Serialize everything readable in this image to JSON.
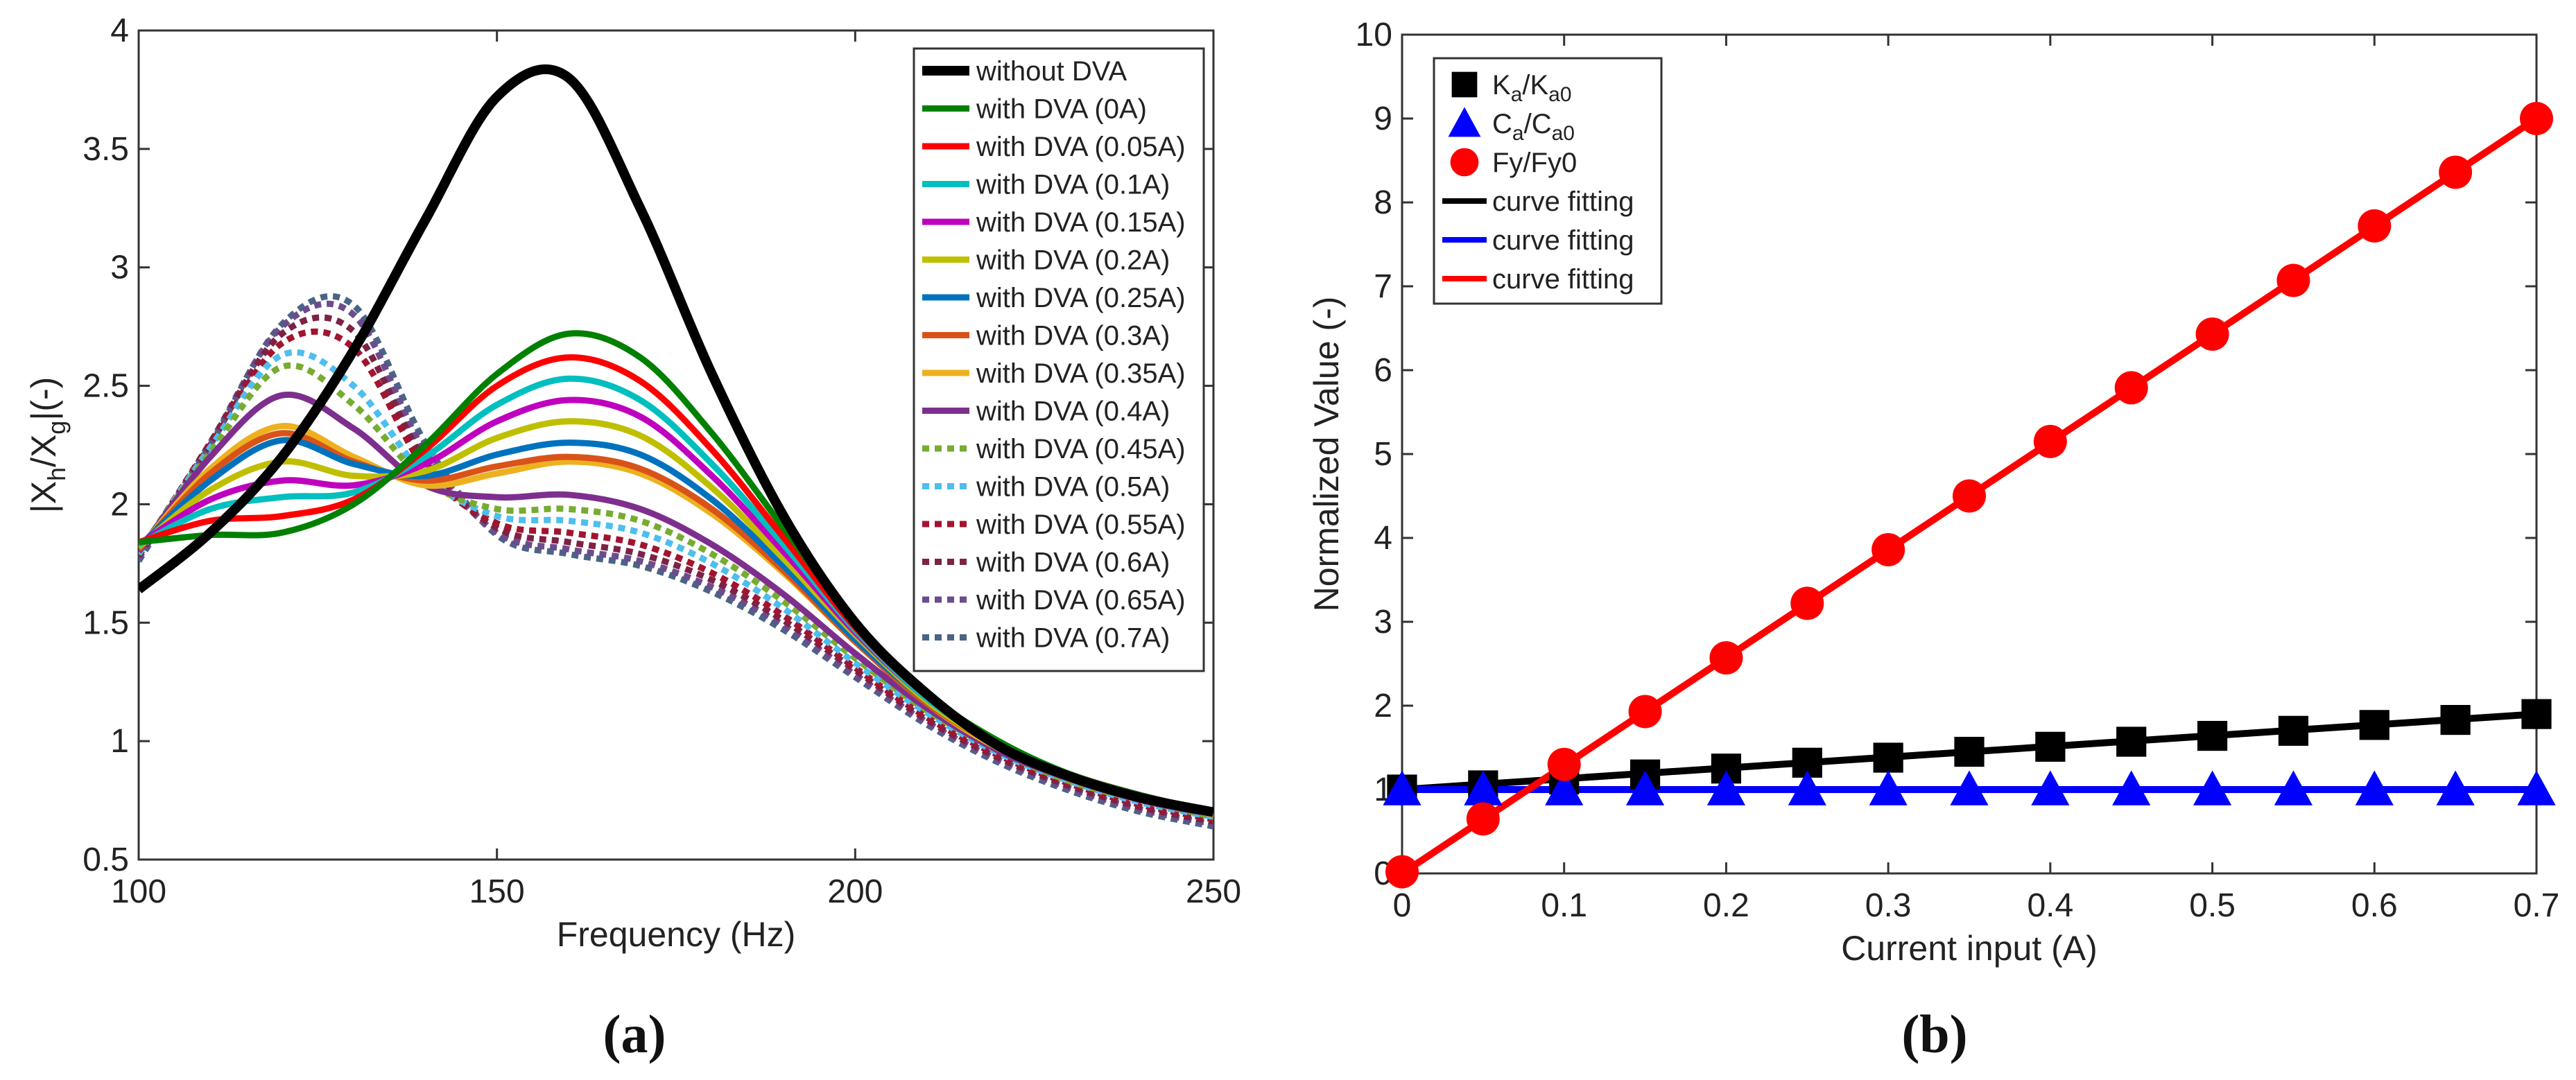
{
  "chart_data": [
    {
      "type": "line",
      "panel": "a",
      "caption": "(a)",
      "xlabel": "Frequency (Hz)",
      "ylabel_parts": [
        "|X",
        "h",
        "/X",
        "g",
        "|(-)"
      ],
      "xlim": [
        100,
        250
      ],
      "ylim": [
        0.5,
        4
      ],
      "xticks": [
        100,
        150,
        200,
        250
      ],
      "yticks": [
        0.5,
        1,
        1.5,
        2,
        2.5,
        3,
        3.5,
        4
      ],
      "x": [
        100,
        110,
        120,
        130,
        140,
        150,
        160,
        170,
        180,
        190,
        200,
        210,
        220,
        230,
        240,
        250
      ],
      "legend_position": "top-right",
      "series": [
        {
          "name": "without DVA",
          "color": "#000000",
          "style": "solid",
          "width": 14,
          "values": [
            1.64,
            1.88,
            2.2,
            2.65,
            3.2,
            3.72,
            3.8,
            3.25,
            2.55,
            1.95,
            1.5,
            1.2,
            0.98,
            0.85,
            0.76,
            0.7
          ]
        },
        {
          "name": "with DVA (0A)",
          "color": "#008000",
          "style": "solid",
          "width": 9,
          "values": [
            1.84,
            1.87,
            1.88,
            2.0,
            2.25,
            2.55,
            2.72,
            2.62,
            2.3,
            1.9,
            1.5,
            1.2,
            1.0,
            0.86,
            0.77,
            0.7
          ]
        },
        {
          "name": "with DVA (0.05A)",
          "color": "#ff0000",
          "style": "solid",
          "width": 9,
          "values": [
            1.84,
            1.93,
            1.95,
            2.02,
            2.23,
            2.5,
            2.62,
            2.52,
            2.23,
            1.86,
            1.48,
            1.19,
            0.99,
            0.86,
            0.77,
            0.7
          ]
        },
        {
          "name": "with DVA (0.1A)",
          "color": "#00bfbf",
          "style": "solid",
          "width": 9,
          "values": [
            1.83,
            1.98,
            2.03,
            2.05,
            2.2,
            2.42,
            2.53,
            2.44,
            2.17,
            1.83,
            1.47,
            1.18,
            0.99,
            0.86,
            0.77,
            0.7
          ]
        },
        {
          "name": "with DVA (0.15A)",
          "color": "#bf00bf",
          "style": "solid",
          "width": 9,
          "values": [
            1.83,
            2.02,
            2.1,
            2.08,
            2.17,
            2.35,
            2.44,
            2.37,
            2.12,
            1.8,
            1.46,
            1.18,
            0.99,
            0.86,
            0.77,
            0.7
          ]
        },
        {
          "name": "with DVA (0.2A)",
          "color": "#bfbf00",
          "style": "solid",
          "width": 9,
          "values": [
            1.82,
            2.06,
            2.18,
            2.12,
            2.14,
            2.28,
            2.35,
            2.29,
            2.07,
            1.77,
            1.45,
            1.17,
            0.98,
            0.85,
            0.76,
            0.7
          ]
        },
        {
          "name": "with DVA (0.25A)",
          "color": "#0072bd",
          "style": "solid",
          "width": 9,
          "values": [
            1.82,
            2.1,
            2.27,
            2.17,
            2.12,
            2.21,
            2.26,
            2.21,
            2.02,
            1.74,
            1.43,
            1.17,
            0.98,
            0.85,
            0.76,
            0.7
          ]
        },
        {
          "name": "with DVA (0.3A)",
          "color": "#d95319",
          "style": "solid",
          "width": 9,
          "values": [
            1.81,
            2.13,
            2.3,
            2.18,
            2.1,
            2.16,
            2.2,
            2.15,
            1.98,
            1.72,
            1.42,
            1.16,
            0.98,
            0.85,
            0.76,
            0.7
          ]
        },
        {
          "name": "with DVA (0.35A)",
          "color": "#edb120",
          "style": "solid",
          "width": 9,
          "values": [
            1.81,
            2.15,
            2.33,
            2.2,
            2.08,
            2.13,
            2.18,
            2.13,
            1.96,
            1.71,
            1.42,
            1.16,
            0.97,
            0.85,
            0.76,
            0.69
          ]
        },
        {
          "name": "with DVA (0.4A)",
          "color": "#7e2f8e",
          "style": "solid",
          "width": 9,
          "values": [
            1.8,
            2.2,
            2.46,
            2.32,
            2.08,
            2.03,
            2.04,
            1.98,
            1.83,
            1.62,
            1.37,
            1.14,
            0.96,
            0.84,
            0.75,
            0.69
          ]
        },
        {
          "name": "with DVA (0.45A)",
          "color": "#77ac30",
          "style": "dotted",
          "width": 9,
          "values": [
            1.8,
            2.22,
            2.58,
            2.42,
            2.1,
            1.98,
            1.98,
            1.93,
            1.79,
            1.59,
            1.35,
            1.13,
            0.96,
            0.83,
            0.75,
            0.68
          ]
        },
        {
          "name": "with DVA (0.5A)",
          "color": "#4dbeee",
          "style": "dotted",
          "width": 9,
          "values": [
            1.79,
            2.24,
            2.63,
            2.5,
            2.12,
            1.95,
            1.93,
            1.88,
            1.75,
            1.56,
            1.33,
            1.12,
            0.95,
            0.83,
            0.74,
            0.68
          ]
        },
        {
          "name": "with DVA (0.55A)",
          "color": "#a2142f",
          "style": "dotted",
          "width": 9,
          "values": [
            1.79,
            2.25,
            2.68,
            2.66,
            2.15,
            1.92,
            1.88,
            1.83,
            1.71,
            1.53,
            1.31,
            1.1,
            0.94,
            0.82,
            0.73,
            0.67
          ]
        },
        {
          "name": "with DVA (0.6A)",
          "color": "#7d2245",
          "style": "dotted",
          "width": 9,
          "values": [
            1.78,
            2.26,
            2.72,
            2.73,
            2.18,
            1.9,
            1.84,
            1.79,
            1.68,
            1.51,
            1.3,
            1.09,
            0.93,
            0.81,
            0.72,
            0.66
          ]
        },
        {
          "name": "with DVA (0.65A)",
          "color": "#6b4c8c",
          "style": "dotted",
          "width": 9,
          "values": [
            1.77,
            2.26,
            2.75,
            2.8,
            2.22,
            1.88,
            1.81,
            1.76,
            1.65,
            1.49,
            1.28,
            1.08,
            0.92,
            0.8,
            0.71,
            0.65
          ]
        },
        {
          "name": "with DVA (0.7A)",
          "color": "#4a6485",
          "style": "dotted",
          "width": 9,
          "values": [
            1.76,
            2.25,
            2.76,
            2.84,
            2.26,
            1.87,
            1.79,
            1.74,
            1.63,
            1.47,
            1.27,
            1.07,
            0.91,
            0.79,
            0.7,
            0.64
          ]
        }
      ]
    },
    {
      "type": "scatter",
      "panel": "b",
      "caption": "(b)",
      "xlabel": "Current input (A)",
      "ylabel": "Normalized Value (-)",
      "xlim": [
        0,
        0.7
      ],
      "ylim": [
        0,
        10
      ],
      "xticks": [
        0,
        0.1,
        0.2,
        0.3,
        0.4,
        0.5,
        0.6,
        0.7
      ],
      "yticks": [
        0,
        1,
        2,
        3,
        4,
        5,
        6,
        7,
        8,
        9,
        10
      ],
      "x": [
        0,
        0.05,
        0.1,
        0.15,
        0.2,
        0.25,
        0.3,
        0.35,
        0.4,
        0.45,
        0.5,
        0.55,
        0.6,
        0.65,
        0.7
      ],
      "legend_position": "top-left",
      "series": [
        {
          "name": "Ka/Ka0",
          "label_parts": [
            "K",
            "a",
            "/K",
            "a0"
          ],
          "marker": "square",
          "color": "#000000",
          "values": [
            1.0,
            1.05,
            1.12,
            1.18,
            1.25,
            1.32,
            1.38,
            1.45,
            1.51,
            1.57,
            1.64,
            1.7,
            1.77,
            1.83,
            1.9
          ]
        },
        {
          "name": "Ca/Ca0",
          "label_parts": [
            "C",
            "a",
            "/C",
            "a0"
          ],
          "marker": "triangle",
          "color": "#0000ff",
          "values": [
            1.0,
            1.0,
            1.0,
            1.0,
            1.0,
            1.0,
            1.0,
            1.0,
            1.0,
            1.0,
            1.0,
            1.0,
            1.0,
            1.0,
            1.0
          ]
        },
        {
          "name": "Fy/Fy0",
          "label_parts": [
            "Fy/Fy0"
          ],
          "marker": "circle",
          "color": "#ff0000",
          "values": [
            0.02,
            0.65,
            1.3,
            1.93,
            2.57,
            3.22,
            3.86,
            4.5,
            5.15,
            5.79,
            6.43,
            7.07,
            7.72,
            8.36,
            9.0
          ]
        }
      ],
      "fits": [
        {
          "name": "curve fitting",
          "color": "#000000",
          "from": [
            0,
            1.0
          ],
          "to": [
            0.7,
            1.9
          ]
        },
        {
          "name": "curve fitting",
          "color": "#0000ff",
          "from": [
            0,
            1.0
          ],
          "to": [
            0.7,
            1.0
          ]
        },
        {
          "name": "curve fitting",
          "color": "#ff0000",
          "from": [
            0,
            0.0
          ],
          "to": [
            0.7,
            9.0
          ]
        }
      ]
    }
  ]
}
